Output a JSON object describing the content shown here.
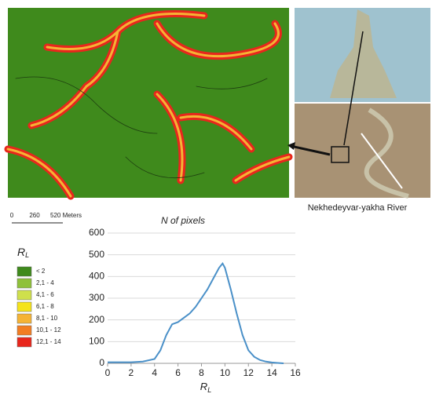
{
  "map_caption": "Nekhedeyvar-yakha River",
  "scale_bar": {
    "ticks": [
      "0",
      "260",
      "520 Meters"
    ]
  },
  "legend": {
    "title": "R",
    "title_sub": "L",
    "items": [
      {
        "label": "< 2",
        "color": "#3f8a1c"
      },
      {
        "label": "2,1 - 4",
        "color": "#8fc13a"
      },
      {
        "label": "4,1 - 6",
        "color": "#cfe04c"
      },
      {
        "label": "6,1 - 8",
        "color": "#f5e31a"
      },
      {
        "label": "8,1 - 10",
        "color": "#f5b335"
      },
      {
        "label": "10,1 - 12",
        "color": "#f27d22"
      },
      {
        "label": "12,1 - 14",
        "color": "#e8261c"
      }
    ]
  },
  "chart_data": {
    "type": "line",
    "title": "N of pixels",
    "x_label": "R",
    "x_label_sub": "L",
    "x": [
      0,
      1,
      2,
      3,
      4,
      4.5,
      5,
      5.5,
      6,
      6.5,
      7,
      7.5,
      8,
      8.5,
      9,
      9.5,
      9.8,
      10,
      10.5,
      11,
      11.5,
      12,
      12.5,
      13,
      13.5,
      14,
      14.5,
      15
    ],
    "values": [
      5,
      5,
      5,
      8,
      20,
      60,
      130,
      180,
      190,
      210,
      230,
      260,
      300,
      340,
      390,
      440,
      460,
      440,
      340,
      230,
      130,
      60,
      30,
      15,
      8,
      4,
      2,
      0
    ],
    "color": "#4a90c8",
    "xlim": [
      0,
      16
    ],
    "xticks": [
      0,
      2,
      4,
      6,
      8,
      10,
      12,
      14,
      16
    ],
    "ylim": [
      0,
      600
    ],
    "yticks": [
      0,
      100,
      200,
      300,
      400,
      500,
      600
    ],
    "grid": true
  }
}
